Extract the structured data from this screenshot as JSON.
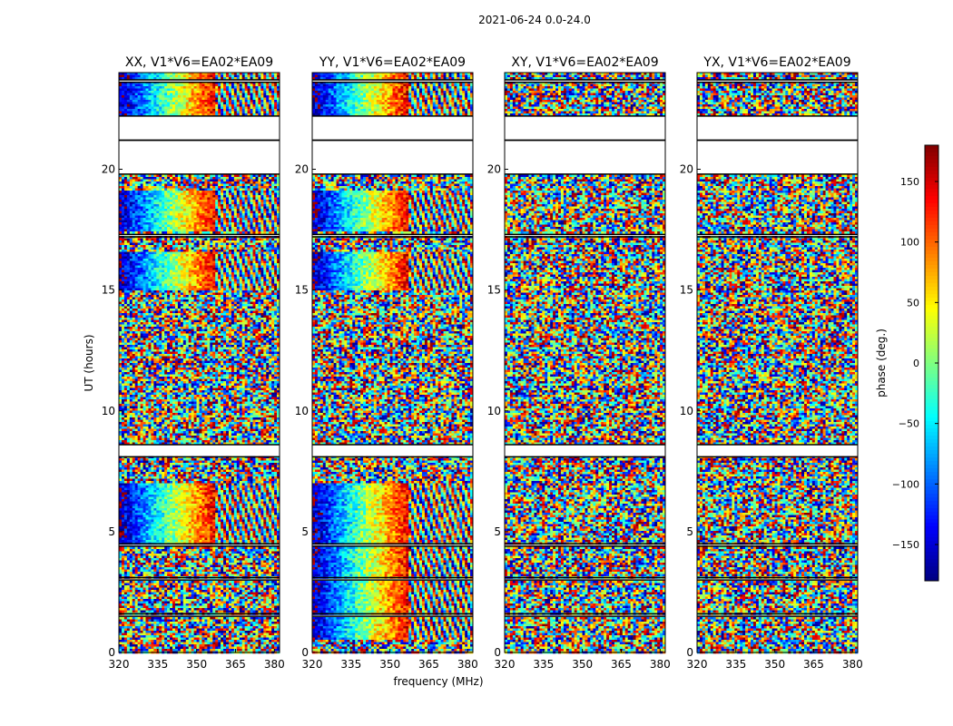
{
  "figure": {
    "suptitle": "2021-06-24 0.0-24.0",
    "xlabel": "frequency (MHz)",
    "ylabel": "UT (hours)",
    "colorbar_label": "phase (deg.)"
  },
  "chart_data": {
    "type": "heatmap",
    "colormap": "jet",
    "color_range": [
      -180,
      180
    ],
    "colorbar_ticks": [
      -150,
      -100,
      -50,
      0,
      50,
      100,
      150
    ],
    "x_range": [
      320,
      382
    ],
    "x_ticks": [
      320,
      335,
      350,
      365,
      380
    ],
    "y_range": [
      0,
      24
    ],
    "y_ticks": [
      0,
      5,
      10,
      15,
      20
    ],
    "flagged_time_ranges": [
      [
        1.5,
        1.6
      ],
      [
        3.0,
        3.1
      ],
      [
        4.4,
        4.5
      ],
      [
        8.1,
        8.6
      ],
      [
        17.2,
        17.3
      ],
      [
        19.8,
        21.2
      ],
      [
        21.2,
        22.2
      ],
      [
        23.6,
        23.7
      ]
    ],
    "panels": [
      {
        "title": "XX, V1*V6=EA02*EA09",
        "coherent_phase_bands": [
          [
            15.0,
            16.6
          ],
          [
            17.4,
            19.1
          ],
          [
            22.2,
            24.0
          ],
          [
            4.5,
            7.0
          ]
        ]
      },
      {
        "title": "YY, V1*V6=EA02*EA09",
        "coherent_phase_bands": [
          [
            15.0,
            16.6
          ],
          [
            17.4,
            19.1
          ],
          [
            22.2,
            24.0
          ],
          [
            0.5,
            7.0
          ]
        ]
      },
      {
        "title": "XY, V1*V6=EA02*EA09",
        "coherent_phase_bands": []
      },
      {
        "title": "YX, V1*V6=EA02*EA09",
        "coherent_phase_bands": []
      }
    ]
  }
}
